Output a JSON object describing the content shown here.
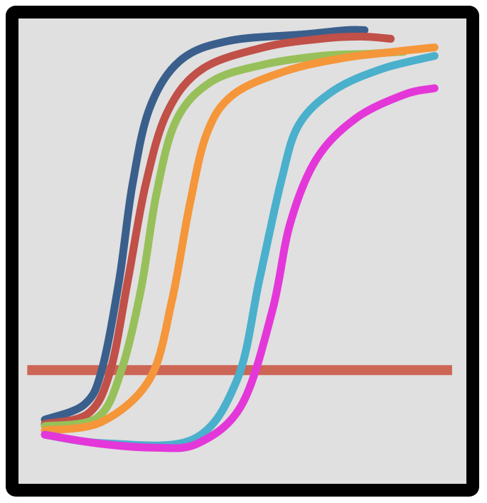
{
  "chart_data": {
    "type": "line",
    "title": "",
    "xlabel": "",
    "ylabel": "",
    "xlim": [
      0,
      100
    ],
    "ylim": [
      0,
      100
    ],
    "grid": false,
    "legend": "none",
    "background_color": "#e0e0e0",
    "frame_color": "#000000",
    "threshold": {
      "value": 14,
      "x_range": [
        -4,
        93
      ],
      "color": "#cc6655"
    },
    "series": [
      {
        "color": "#3a5f8c",
        "values": [
          [
            0,
            2.5
          ],
          [
            9,
            6
          ],
          [
            13,
            14
          ],
          [
            17,
            35
          ],
          [
            20,
            57
          ],
          [
            24,
            75
          ],
          [
            31,
            86
          ],
          [
            42,
            90.5
          ],
          [
            59,
            92
          ],
          [
            69,
            93
          ],
          [
            73,
            93
          ]
        ]
      },
      {
        "color": "#c05048",
        "values": [
          [
            0,
            1.5
          ],
          [
            10,
            4
          ],
          [
            15,
            14
          ],
          [
            19,
            35
          ],
          [
            23,
            57
          ],
          [
            28,
            74
          ],
          [
            36,
            84
          ],
          [
            50,
            89
          ],
          [
            63,
            91
          ],
          [
            72,
            91.5
          ],
          [
            79,
            91
          ]
        ]
      },
      {
        "color": "#98c05a",
        "values": [
          [
            0,
            1
          ],
          [
            12,
            3
          ],
          [
            17.5,
            14
          ],
          [
            22,
            33
          ],
          [
            25.5,
            55
          ],
          [
            30,
            72
          ],
          [
            38,
            81
          ],
          [
            50,
            85
          ],
          [
            63,
            87
          ],
          [
            74,
            87.5
          ],
          [
            82,
            88
          ]
        ]
      },
      {
        "color": "#f5963a",
        "values": [
          [
            0,
            0
          ],
          [
            13,
            2
          ],
          [
            24,
            12
          ],
          [
            29,
            30
          ],
          [
            33,
            52
          ],
          [
            37,
            69
          ],
          [
            43,
            78
          ],
          [
            55,
            83.5
          ],
          [
            68,
            86.5
          ],
          [
            80,
            88
          ],
          [
            89,
            89
          ]
        ]
      },
      {
        "color": "#4ab0cc",
        "values": [
          [
            0,
            -1
          ],
          [
            14,
            -3
          ],
          [
            34,
            -2
          ],
          [
            44,
            12
          ],
          [
            49,
            35
          ],
          [
            54,
            58
          ],
          [
            58,
            71
          ],
          [
            66,
            79
          ],
          [
            77,
            84
          ],
          [
            89,
            87
          ]
        ]
      },
      {
        "color": "#e437d9",
        "values": [
          [
            0,
            -1
          ],
          [
            12,
            -3
          ],
          [
            25,
            -4
          ],
          [
            35,
            -3
          ],
          [
            45,
            6
          ],
          [
            52,
            28
          ],
          [
            56,
            48
          ],
          [
            62,
            63
          ],
          [
            71,
            72.5
          ],
          [
            82,
            78
          ],
          [
            89,
            79.5
          ]
        ]
      }
    ]
  }
}
